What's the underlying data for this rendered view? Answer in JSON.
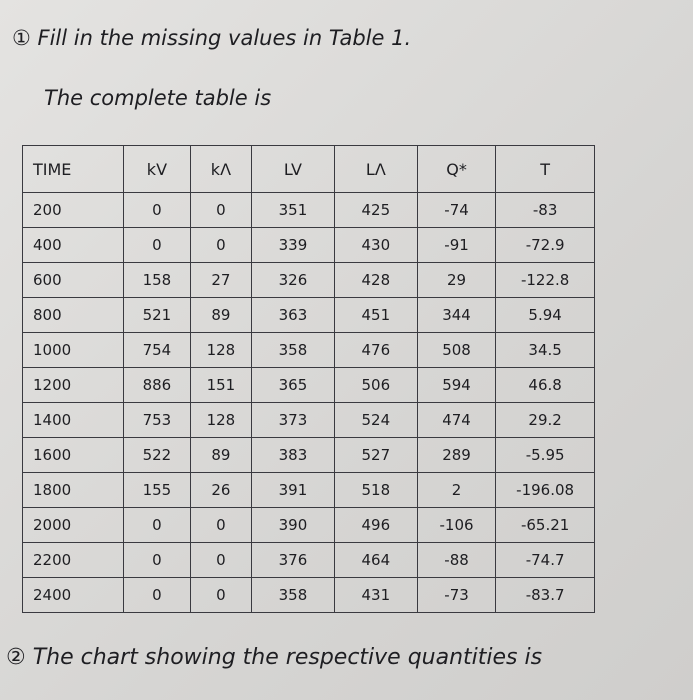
{
  "header": {
    "title": "① Fill in the missing values in Table 1.",
    "subtitle": "The complete table is"
  },
  "table": {
    "columns": [
      "TIME",
      "kV",
      "kΛ",
      "LV",
      "LΛ",
      "Q*",
      "T"
    ],
    "rows": [
      [
        "200",
        "0",
        "0",
        "351",
        "425",
        "-74",
        "-83"
      ],
      [
        "400",
        "0",
        "0",
        "339",
        "430",
        "-91",
        "-72.9"
      ],
      [
        "600",
        "158",
        "27",
        "326",
        "428",
        "29",
        "-122.8"
      ],
      [
        "800",
        "521",
        "89",
        "363",
        "451",
        "344",
        "5.94"
      ],
      [
        "1000",
        "754",
        "128",
        "358",
        "476",
        "508",
        "34.5"
      ],
      [
        "1200",
        "886",
        "151",
        "365",
        "506",
        "594",
        "46.8"
      ],
      [
        "1400",
        "753",
        "128",
        "373",
        "524",
        "474",
        "29.2"
      ],
      [
        "1600",
        "522",
        "89",
        "383",
        "527",
        "289",
        "-5.95"
      ],
      [
        "1800",
        "155",
        "26",
        "391",
        "518",
        "2",
        "-196.08"
      ],
      [
        "2000",
        "0",
        "0",
        "390",
        "496",
        "-106",
        "-65.21"
      ],
      [
        "2200",
        "0",
        "0",
        "376",
        "464",
        "-88",
        "-74.7"
      ],
      [
        "2400",
        "0",
        "0",
        "358",
        "431",
        "-73",
        "-83.7"
      ]
    ]
  },
  "footer": {
    "text": "② The chart showing the respective quantities is"
  }
}
